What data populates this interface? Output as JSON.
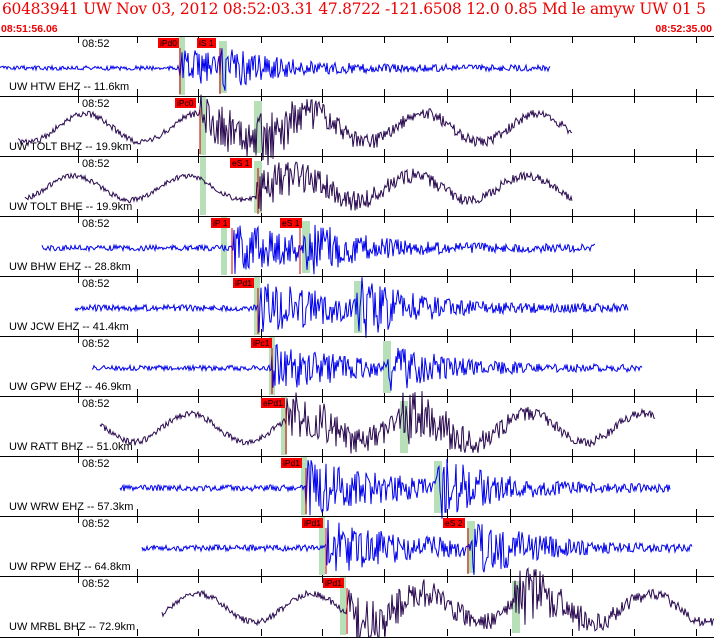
{
  "header": {
    "title": "60483941 UW Nov 03, 2012 08:52:03.31    47.8722 -121.6508 12.0 0.85 Md le amyw UW 01    5",
    "start_time": "08:51:56.06",
    "end_time": "08:52:35.00"
  },
  "tick_label": "08:52",
  "colors": {
    "title": "#ee0000",
    "trace_blue": "#0000ee",
    "trace_purple": "#2a0a50",
    "pick": "#ff0000",
    "window": "#b8e0b8"
  },
  "traces": [
    {
      "label": "UW HTW EHZ -- 11.6km",
      "color": "blue",
      "picks": [
        "iPd0",
        "iS 1"
      ]
    },
    {
      "label": "UW TOLT BHZ -- 19.9km",
      "color": "purple",
      "picks": [
        "iPc0"
      ]
    },
    {
      "label": "UW TOLT BHE -- 19.9km",
      "color": "purple",
      "picks": [
        "eS 1"
      ]
    },
    {
      "label": "UW BHW EHZ -- 28.8km",
      "color": "blue",
      "picks": [
        "iP 1",
        "eS 1"
      ]
    },
    {
      "label": "UW JCW EHZ -- 41.4km",
      "color": "blue",
      "picks": [
        "iPd1"
      ]
    },
    {
      "label": "UW GPW EHZ -- 46.9km",
      "color": "blue",
      "picks": [
        "iPc1"
      ]
    },
    {
      "label": "UW RATT BHZ -- 51.0km",
      "color": "purple",
      "picks": [
        "ePd1"
      ]
    },
    {
      "label": "UW WRW EHZ -- 57.3km",
      "color": "blue",
      "picks": [
        "iPd1"
      ]
    },
    {
      "label": "UW RPW EHZ -- 64.8km",
      "color": "blue",
      "picks": [
        "iPd1",
        "eS 2"
      ]
    },
    {
      "label": "UW MRBL BHZ -- 72.9km",
      "color": "purple",
      "picks": [
        "iPd1"
      ]
    }
  ]
}
